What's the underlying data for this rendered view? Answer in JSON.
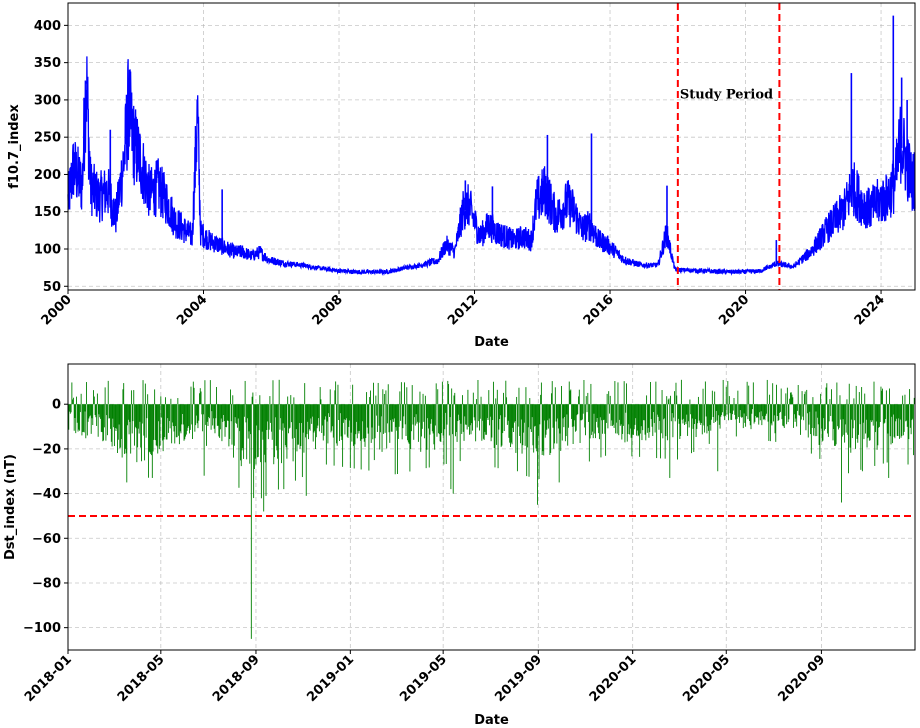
{
  "chart_data": [
    {
      "type": "line",
      "title": "",
      "xlabel": "Date",
      "ylabel": "f10.7_index",
      "x_range": [
        "2000-01-01",
        "2025-01-01"
      ],
      "ylim": [
        45,
        430
      ],
      "y_ticks": [
        50,
        100,
        150,
        200,
        250,
        300,
        350,
        400
      ],
      "x_ticks": [
        "2000",
        "2004",
        "2008",
        "2012",
        "2016",
        "2020",
        "2024"
      ],
      "grid": true,
      "line_color": "#0000ff",
      "series": [
        {
          "name": "",
          "points": [
            [
              "2000-01-01",
              160
            ],
            [
              "2000-03-01",
              205
            ],
            [
              "2000-06-01",
              180
            ],
            [
              "2000-07-15",
              325
            ],
            [
              "2000-09-01",
              180
            ],
            [
              "2000-12-01",
              165
            ],
            [
              "2001-03-01",
              175
            ],
            [
              "2001-06-01",
              140
            ],
            [
              "2001-09-01",
              220
            ],
            [
              "2001-10-15",
              285
            ],
            [
              "2001-12-01",
              240
            ],
            [
              "2002-03-01",
              210
            ],
            [
              "2002-06-01",
              170
            ],
            [
              "2002-09-01",
              180
            ],
            [
              "2002-12-01",
              160
            ],
            [
              "2003-03-01",
              135
            ],
            [
              "2003-06-01",
              125
            ],
            [
              "2003-09-01",
              115
            ],
            [
              "2003-10-28",
              275
            ],
            [
              "2003-12-01",
              120
            ],
            [
              "2004-03-01",
              110
            ],
            [
              "2004-06-01",
              105
            ],
            [
              "2004-09-01",
              100
            ],
            [
              "2004-12-01",
              95
            ],
            [
              "2005-03-01",
              95
            ],
            [
              "2005-06-01",
              90
            ],
            [
              "2005-09-01",
              95
            ],
            [
              "2005-12-01",
              85
            ],
            [
              "2006-06-01",
              80
            ],
            [
              "2006-12-01",
              78
            ],
            [
              "2007-06-01",
              74
            ],
            [
              "2007-12-01",
              71
            ],
            [
              "2008-06-01",
              69
            ],
            [
              "2008-12-01",
              69
            ],
            [
              "2009-06-01",
              69
            ],
            [
              "2009-12-01",
              74
            ],
            [
              "2010-06-01",
              78
            ],
            [
              "2010-12-01",
              84
            ],
            [
              "2011-03-01",
              105
            ],
            [
              "2011-06-01",
              95
            ],
            [
              "2011-09-01",
              150
            ],
            [
              "2011-11-01",
              155
            ],
            [
              "2012-03-01",
              115
            ],
            [
              "2012-06-01",
              130
            ],
            [
              "2012-09-01",
              120
            ],
            [
              "2012-12-01",
              115
            ],
            [
              "2013-03-01",
              110
            ],
            [
              "2013-06-01",
              115
            ],
            [
              "2013-09-01",
              110
            ],
            [
              "2013-11-01",
              160
            ],
            [
              "2014-02-01",
              175
            ],
            [
              "2014-06-01",
              140
            ],
            [
              "2014-10-01",
              160
            ],
            [
              "2014-12-01",
              150
            ],
            [
              "2015-03-01",
              125
            ],
            [
              "2015-06-01",
              130
            ],
            [
              "2015-09-01",
              110
            ],
            [
              "2015-12-01",
              105
            ],
            [
              "2016-03-01",
              95
            ],
            [
              "2016-06-01",
              85
            ],
            [
              "2016-12-01",
              78
            ],
            [
              "2017-06-01",
              78
            ],
            [
              "2017-09-01",
              120
            ],
            [
              "2017-12-01",
              72
            ],
            [
              "2018-06-01",
              71
            ],
            [
              "2018-12-01",
              70
            ],
            [
              "2019-06-01",
              69
            ],
            [
              "2019-12-01",
              69
            ],
            [
              "2020-06-01",
              70
            ],
            [
              "2020-12-01",
              80
            ],
            [
              "2021-06-01",
              76
            ],
            [
              "2021-12-01",
              95
            ],
            [
              "2022-06-01",
              125
            ],
            [
              "2022-12-01",
              150
            ],
            [
              "2023-03-01",
              180
            ],
            [
              "2023-06-01",
              160
            ],
            [
              "2023-09-01",
              150
            ],
            [
              "2023-12-01",
              160
            ],
            [
              "2024-03-01",
              165
            ],
            [
              "2024-06-01",
              185
            ],
            [
              "2024-08-01",
              240
            ],
            [
              "2024-10-01",
              210
            ],
            [
              "2024-12-01",
              185
            ],
            [
              "2025-01-01",
              190
            ]
          ],
          "spikes": [
            [
              "2000-07-14",
              325
            ],
            [
              "2001-09-25",
              285
            ],
            [
              "2001-04-01",
              260
            ],
            [
              "2003-10-28",
              275
            ],
            [
              "2004-07-20",
              180
            ],
            [
              "2011-09-24",
              192
            ],
            [
              "2012-07-12",
              184
            ],
            [
              "2014-02-25",
              253
            ],
            [
              "2015-06-15",
              255
            ],
            [
              "2017-09-06",
              185
            ],
            [
              "2020-11-28",
              112
            ],
            [
              "2023-02-15",
              336
            ],
            [
              "2024-05-12",
              413
            ],
            [
              "2024-08-10",
              330
            ],
            [
              "2024-10-08",
              300
            ]
          ]
        }
      ],
      "annotations": [
        {
          "type": "vline",
          "x": "2018-01-01",
          "color": "#ff0000",
          "style": "dashed"
        },
        {
          "type": "vline",
          "x": "2020-12-31",
          "color": "#ff0000",
          "style": "dashed"
        },
        {
          "type": "text",
          "x": "2018-01-01",
          "y": 302,
          "text": "Study Period"
        }
      ]
    },
    {
      "type": "bar",
      "title": "",
      "xlabel": "Date",
      "ylabel": "Dst_index (nT)",
      "x_range": [
        "2018-01-01",
        "2020-12-31"
      ],
      "ylim": [
        -110,
        18
      ],
      "y_ticks": [
        0,
        -20,
        -40,
        -60,
        -80,
        -100
      ],
      "x_ticks": [
        "2018-01",
        "2018-05",
        "2018-09",
        "2019-01",
        "2019-05",
        "2019-09",
        "2020-01",
        "2020-05",
        "2020-09"
      ],
      "grid": true,
      "bar_color": "#008000",
      "threshold": {
        "y": -50,
        "color": "#ff0000",
        "style": "dashed"
      },
      "series": [
        {
          "name": "",
          "baseline_profile": [
            [
              "2018-01-01",
              -6
            ],
            [
              "2018-02-15",
              -9
            ],
            [
              "2018-03-15",
              -14
            ],
            [
              "2018-05-01",
              -12
            ],
            [
              "2018-07-01",
              -6
            ],
            [
              "2018-08-25",
              -18
            ],
            [
              "2018-10-01",
              -15
            ],
            [
              "2018-12-01",
              -10
            ],
            [
              "2019-03-01",
              -12
            ],
            [
              "2019-06-01",
              -9
            ],
            [
              "2019-09-01",
              -13
            ],
            [
              "2019-12-01",
              -8
            ],
            [
              "2020-03-01",
              -9
            ],
            [
              "2020-05-01",
              -4
            ],
            [
              "2020-08-01",
              -6
            ],
            [
              "2020-10-01",
              -12
            ],
            [
              "2020-12-31",
              -8
            ]
          ],
          "storms": [
            [
              "2018-08-26",
              -105
            ],
            [
              "2018-08-29",
              -42
            ],
            [
              "2018-09-11",
              -48
            ],
            [
              "2018-10-07",
              -38
            ],
            [
              "2018-11-05",
              -41
            ],
            [
              "2018-03-18",
              -35
            ],
            [
              "2018-04-20",
              -33
            ],
            [
              "2018-06-26",
              -32
            ],
            [
              "2019-05-14",
              -40
            ],
            [
              "2019-05-11",
              -38
            ],
            [
              "2019-08-05",
              -30
            ],
            [
              "2019-08-31",
              -45
            ],
            [
              "2019-09-28",
              -35
            ],
            [
              "2019-02-01",
              -25
            ],
            [
              "2020-02-18",
              -33
            ],
            [
              "2020-04-20",
              -30
            ],
            [
              "2020-09-27",
              -44
            ],
            [
              "2020-10-24",
              -30
            ],
            [
              "2020-11-27",
              -33
            ],
            [
              "2020-12-22",
              -27
            ]
          ]
        }
      ]
    }
  ]
}
